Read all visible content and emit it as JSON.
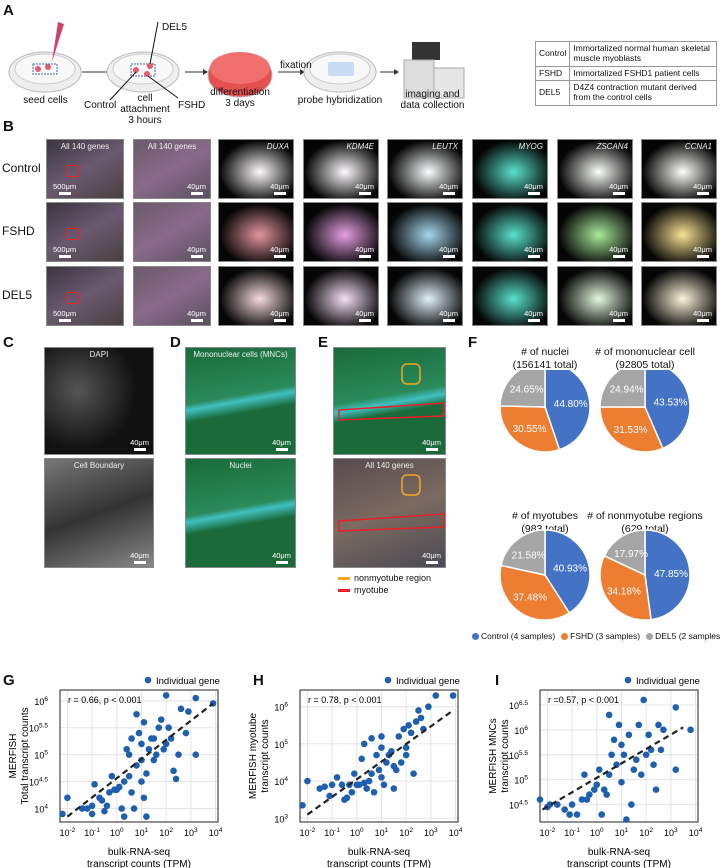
{
  "panels": {
    "A": "A",
    "B": "B",
    "C": "C",
    "D": "D",
    "E": "E",
    "F": "F",
    "G": "G",
    "H": "H",
    "I": "I"
  },
  "panel_a": {
    "steps": [
      "seed cells",
      "cell attachment\n3 hours",
      "differentiation\n3 days",
      "probe hybridization",
      "imaging and\ndata collection"
    ],
    "arrow_label": "fixation",
    "well_labels": {
      "control": "Control",
      "del5": "DEL5",
      "fshd": "FSHD"
    },
    "table": [
      {
        "group": "Control",
        "description": "Immortalized normal human skeletal muscle myoblasts"
      },
      {
        "group": "FSHD",
        "description": "Immortalized  FSHD1 patient cells"
      },
      {
        "group": "DEL5",
        "description": "D4Z4 contraction mutant derived from the control cells"
      }
    ]
  },
  "panel_b": {
    "rows": [
      "Control",
      "FSHD",
      "DEL5"
    ],
    "overview_label": "All 140 genes",
    "zoom_label": "All 140 genes",
    "genes": [
      "DUXA",
      "KDM4E",
      "LEUTX",
      "MYOG",
      "ZSCAN4",
      "CCNA1"
    ],
    "gene_colors": [
      "#c0142a",
      "#c42cc0",
      "#3aa6d8",
      "#20d8b8",
      "#3fd020",
      "#f0c010"
    ],
    "scale_overview": "500μm",
    "scale_zoom": "40μm"
  },
  "panel_c": {
    "top": "DAPI",
    "bottom": "Cell Boundary",
    "scale": "40μm"
  },
  "panel_d": {
    "top": "Mononuclear cells (MNCs)",
    "bottom": "Nuclei",
    "scale": "40μm"
  },
  "panel_e": {
    "bottom": "All 140 genes",
    "scale": "40μm",
    "legend": [
      {
        "label": "nonmyotube region",
        "color": "#f5a623"
      },
      {
        "label": "myotube",
        "color": "#e8202a"
      }
    ]
  },
  "panel_f": {
    "colors": {
      "Control": "#4472c4",
      "FSHD": "#ed7d31",
      "DEL5": "#a5a5a5"
    },
    "legend": [
      "Control (4 samples)",
      "FSHD (3 samples)",
      "DEL5 (2 samples)"
    ]
  },
  "chart_data": [
    {
      "type": "pie",
      "title": "# of nuclei",
      "subtitle": "(156141 total)",
      "categories": [
        "Control",
        "FSHD",
        "DEL5"
      ],
      "values": [
        44.8,
        30.55,
        24.65
      ],
      "labels": [
        "44.80%",
        "30.55%",
        "24.65%"
      ]
    },
    {
      "type": "pie",
      "title": "# of mononuclear cell",
      "subtitle": "(92805 total)",
      "categories": [
        "Control",
        "FSHD",
        "DEL5"
      ],
      "values": [
        43.53,
        31.53,
        24.94
      ],
      "labels": [
        "43.53%",
        "31.53%",
        "24.94%"
      ]
    },
    {
      "type": "pie",
      "title": "# of myotubes",
      "subtitle": "(983 total)",
      "categories": [
        "Control",
        "FSHD",
        "DEL5"
      ],
      "values": [
        40.93,
        37.48,
        21.58
      ],
      "labels": [
        "40.93%",
        "37.48%",
        "21.58%"
      ]
    },
    {
      "type": "pie",
      "title": "# of nonmyotube regions",
      "subtitle": "(629 total)",
      "categories": [
        "Control",
        "FSHD",
        "DEL5"
      ],
      "values": [
        47.85,
        34.18,
        17.97
      ],
      "labels": [
        "47.85%",
        "34.18%",
        "17.97%"
      ]
    },
    {
      "type": "scatter",
      "xlabel": "bulk-RNA-seq\ntranscript counts (TPM)",
      "ylabel": "MERFISH\nTotal transcript counts",
      "annotation": "r = 0.66, p < 0.001",
      "legend": "Individual gene",
      "color": "#1f5fb0",
      "x_scale": "log10",
      "y_scale": "log10",
      "xlim_log10": [
        -2.3,
        4.1
      ],
      "ylim_log10": [
        3.75,
        6.2
      ],
      "xticks_log10": [
        -2,
        -1,
        0,
        1,
        2,
        3,
        4
      ],
      "yticks_log10": [
        4,
        4.5,
        5,
        5.5,
        6
      ],
      "yticklabels": [
        "4",
        "4.5",
        "5",
        "5.5",
        "6"
      ],
      "grid": true,
      "trend_log10": [
        [
          -2.0,
          3.85
        ],
        [
          3.9,
          5.95
        ]
      ],
      "points_log10": [
        [
          -2.2,
          3.9
        ],
        [
          -2,
          4.2
        ],
        [
          -1.4,
          4.0
        ],
        [
          -1.2,
          4.0
        ],
        [
          -1,
          4.05
        ],
        [
          -1,
          3.9
        ],
        [
          -0.9,
          4.45
        ],
        [
          -0.7,
          4.2
        ],
        [
          -0.6,
          4.15
        ],
        [
          -0.5,
          3.95
        ],
        [
          -0.4,
          4.05
        ],
        [
          -0.3,
          4.3
        ],
        [
          -0.1,
          4.35
        ],
        [
          0,
          4.35
        ],
        [
          0.1,
          4.4
        ],
        [
          0.2,
          4.0
        ],
        [
          0.3,
          3.85
        ],
        [
          0.3,
          4.5
        ],
        [
          0.4,
          5.1
        ],
        [
          0.5,
          4.6
        ],
        [
          0.6,
          5.3
        ],
        [
          0.6,
          4.3
        ],
        [
          0.7,
          4.0
        ],
        [
          0.8,
          5.75
        ],
        [
          0.8,
          4.8
        ],
        [
          0.9,
          5.4
        ],
        [
          1,
          4.9
        ],
        [
          1,
          5.2
        ],
        [
          1.1,
          4.2
        ],
        [
          1.1,
          5.6
        ],
        [
          1.2,
          3.85
        ],
        [
          1.2,
          4.65
        ],
        [
          1.3,
          5.1
        ],
        [
          1.4,
          5.3
        ],
        [
          1.5,
          4.9
        ],
        [
          1.6,
          5.0
        ],
        [
          1.7,
          5.5
        ],
        [
          1.8,
          5.65
        ],
        [
          1.9,
          5.1
        ],
        [
          2,
          6.1
        ],
        [
          2.1,
          5.5
        ],
        [
          2.2,
          5.3
        ],
        [
          2.3,
          4.7
        ],
        [
          2.4,
          4.55
        ],
        [
          2.5,
          5.0
        ],
        [
          2.6,
          5.85
        ],
        [
          2.8,
          5.4
        ],
        [
          2.9,
          5.8
        ],
        [
          3.2,
          6.05
        ],
        [
          3.2,
          5.0
        ],
        [
          3.9,
          5.95
        ],
        [
          -0.2,
          4.6
        ],
        [
          0.5,
          5.0
        ],
        [
          1.5,
          5.3
        ],
        [
          2.0,
          5.2
        ],
        [
          1.0,
          4.5
        ]
      ]
    },
    {
      "type": "scatter",
      "xlabel": "bulk-RNA-seq\ntranscript counts (TPM)",
      "ylabel": "MERFISH myotube\ntranscript counts",
      "annotation": "r = 0.78, p < 0.001",
      "legend": "Individual gene",
      "color": "#1f5fb0",
      "x_scale": "log10",
      "y_scale": "log10",
      "xlim_log10": [
        -2.3,
        4.1
      ],
      "ylim_log10": [
        2.9,
        6.45
      ],
      "xticks_log10": [
        -2,
        -1,
        0,
        1,
        2,
        3,
        4
      ],
      "yticks_log10": [
        3,
        4,
        5,
        6
      ],
      "yticklabels": [
        "3",
        "4",
        "5",
        "6"
      ],
      "grid": true,
      "trend_log10": [
        [
          -2.0,
          3.1
        ],
        [
          3.9,
          5.9
        ]
      ],
      "points_log10": [
        [
          -2.2,
          3.35
        ],
        [
          -2,
          4.0
        ],
        [
          -1.5,
          3.8
        ],
        [
          -1.3,
          3.85
        ],
        [
          -1.1,
          3.6
        ],
        [
          -1,
          3.9
        ],
        [
          -0.8,
          4.1
        ],
        [
          -0.6,
          3.9
        ],
        [
          -0.5,
          3.5
        ],
        [
          -0.4,
          3.55
        ],
        [
          -0.3,
          3.9
        ],
        [
          -0.2,
          3.7
        ],
        [
          -0.1,
          4.2
        ],
        [
          0,
          3.9
        ],
        [
          0.1,
          3.9
        ],
        [
          0.2,
          4.6
        ],
        [
          0.3,
          3.95
        ],
        [
          0.4,
          3.8
        ],
        [
          0.5,
          4.0
        ],
        [
          0.6,
          4.2
        ],
        [
          0.6,
          5.15
        ],
        [
          0.7,
          3.7
        ],
        [
          0.8,
          4.7
        ],
        [
          0.9,
          4.3
        ],
        [
          1,
          4.1
        ],
        [
          1,
          4.9
        ],
        [
          1.1,
          3.9
        ],
        [
          1.2,
          4.5
        ],
        [
          1.3,
          4.7
        ],
        [
          1.4,
          4.8
        ],
        [
          1.5,
          3.8
        ],
        [
          1.6,
          4.3
        ],
        [
          1.7,
          5.2
        ],
        [
          1.8,
          4.5
        ],
        [
          1.9,
          5.4
        ],
        [
          2,
          4.7
        ],
        [
          2.1,
          5.5
        ],
        [
          2.2,
          5.3
        ],
        [
          2.3,
          4.2
        ],
        [
          2.4,
          5.6
        ],
        [
          2.5,
          5.9
        ],
        [
          2.6,
          5.7
        ],
        [
          2.7,
          5.4
        ],
        [
          2.9,
          6.0
        ],
        [
          3.2,
          6.3
        ],
        [
          3.9,
          6.3
        ],
        [
          0.3,
          5.0
        ],
        [
          1.0,
          5.2
        ],
        [
          2.0,
          4.9
        ],
        [
          1.5,
          4.4
        ]
      ]
    },
    {
      "type": "scatter",
      "xlabel": "bulk-RNA-seq\ntranscript counts (TPM)",
      "ylabel": "MERFISH MNCs\ntranscript counts",
      "annotation": "r =0.57, p < 0.001",
      "legend": "Individual gene",
      "color": "#1f5fb0",
      "x_scale": "log10",
      "y_scale": "log10",
      "xlim_log10": [
        -2.3,
        4.1
      ],
      "ylim_log10": [
        4.15,
        6.8
      ],
      "xticks_log10": [
        -2,
        -1,
        0,
        1,
        2,
        3,
        4
      ],
      "yticks_log10": [
        4.5,
        5,
        5.5,
        6,
        6.5
      ],
      "yticklabels": [
        "4.5",
        "5",
        "5.5",
        "6",
        "6.5"
      ],
      "grid": true,
      "trend_log10": [
        [
          -2.2,
          4.4
        ],
        [
          3.5,
          6.05
        ]
      ],
      "points_log10": [
        [
          -2.3,
          4.6
        ],
        [
          -1.6,
          4.5
        ],
        [
          -1.3,
          4.4
        ],
        [
          -1.1,
          4.3
        ],
        [
          -1,
          4.5
        ],
        [
          -0.8,
          4.3
        ],
        [
          -0.6,
          4.6
        ],
        [
          -0.5,
          5.1
        ],
        [
          -0.4,
          4.6
        ],
        [
          -0.3,
          4.7
        ],
        [
          -0.1,
          4.8
        ],
        [
          0,
          4.9
        ],
        [
          0.1,
          5.2
        ],
        [
          0.2,
          4.3
        ],
        [
          0.3,
          4.8
        ],
        [
          0.4,
          4.7
        ],
        [
          0.5,
          6.3
        ],
        [
          0.5,
          5.1
        ],
        [
          0.6,
          5.5
        ],
        [
          0.7,
          5.8
        ],
        [
          0.8,
          5.3
        ],
        [
          0.9,
          6.1
        ],
        [
          1,
          5.7
        ],
        [
          1,
          4.95
        ],
        [
          1.1,
          5.5
        ],
        [
          1.2,
          4.2
        ],
        [
          1.3,
          5.9
        ],
        [
          1.4,
          4.5
        ],
        [
          1.5,
          5.2
        ],
        [
          1.6,
          5.4
        ],
        [
          1.7,
          6.1
        ],
        [
          1.8,
          5.1
        ],
        [
          1.9,
          6.6
        ],
        [
          2.0,
          5.5
        ],
        [
          2.1,
          5.9
        ],
        [
          2.2,
          5.6
        ],
        [
          2.3,
          5.3
        ],
        [
          2.4,
          4.8
        ],
        [
          2.5,
          6.1
        ],
        [
          2.6,
          5.6
        ],
        [
          2.7,
          6.0
        ],
        [
          3.2,
          6.45
        ],
        [
          3.2,
          5.2
        ],
        [
          3.8,
          6.0
        ],
        [
          -2.0,
          4.45
        ],
        [
          -1.9,
          4.5
        ]
      ]
    }
  ]
}
